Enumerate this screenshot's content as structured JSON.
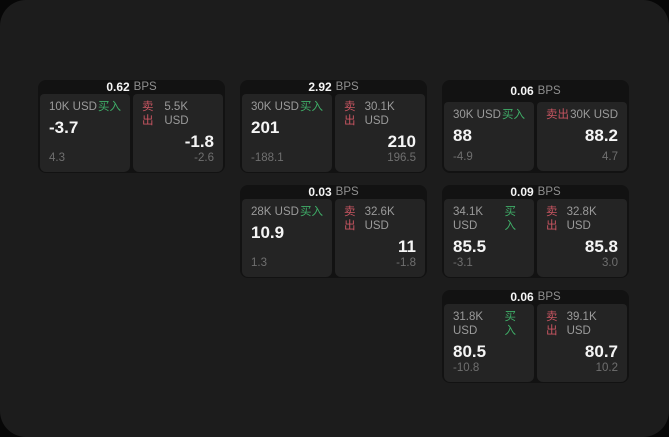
{
  "labels": {
    "buy": "买入",
    "sell": "卖出",
    "bps": "BPS"
  },
  "colors": {
    "buy": "#3fae68",
    "sell": "#c75561",
    "window_bg": "#1c1c1c",
    "card_bg": "#121212",
    "panel_bg": "#242424"
  },
  "cards": [
    {
      "row": 1,
      "col": 1,
      "bps": "0.62",
      "buy": {
        "amount": "10K USD",
        "value": "-3.7",
        "sub": "4.3"
      },
      "sell": {
        "amount": "5.5K USD",
        "value": "-1.8",
        "sub": "-2.6"
      }
    },
    {
      "row": 1,
      "col": 2,
      "bps": "2.92",
      "buy": {
        "amount": "30K USD",
        "value": "201",
        "sub": "-188.1"
      },
      "sell": {
        "amount": "30.1K USD",
        "value": "210",
        "sub": "196.5"
      }
    },
    {
      "row": 1,
      "col": 3,
      "bps": "0.06",
      "buy": {
        "amount": "30K USD",
        "value": "88",
        "sub": "-4.9"
      },
      "sell": {
        "amount": "30K USD",
        "value": "88.2",
        "sub": "4.7"
      }
    },
    {
      "row": 2,
      "col": 2,
      "bps": "0.03",
      "buy": {
        "amount": "28K USD",
        "value": "10.9",
        "sub": "1.3"
      },
      "sell": {
        "amount": "32.6K USD",
        "value": "11",
        "sub": "-1.8"
      }
    },
    {
      "row": 2,
      "col": 3,
      "bps": "0.09",
      "buy": {
        "amount": "34.1K USD",
        "value": "85.5",
        "sub": "-3.1"
      },
      "sell": {
        "amount": "32.8K USD",
        "value": "85.8",
        "sub": "3.0"
      }
    },
    {
      "row": 3,
      "col": 3,
      "bps": "0.06",
      "buy": {
        "amount": "31.8K USD",
        "value": "80.5",
        "sub": "-10.8"
      },
      "sell": {
        "amount": "39.1K USD",
        "value": "80.7",
        "sub": "10.2"
      }
    }
  ]
}
